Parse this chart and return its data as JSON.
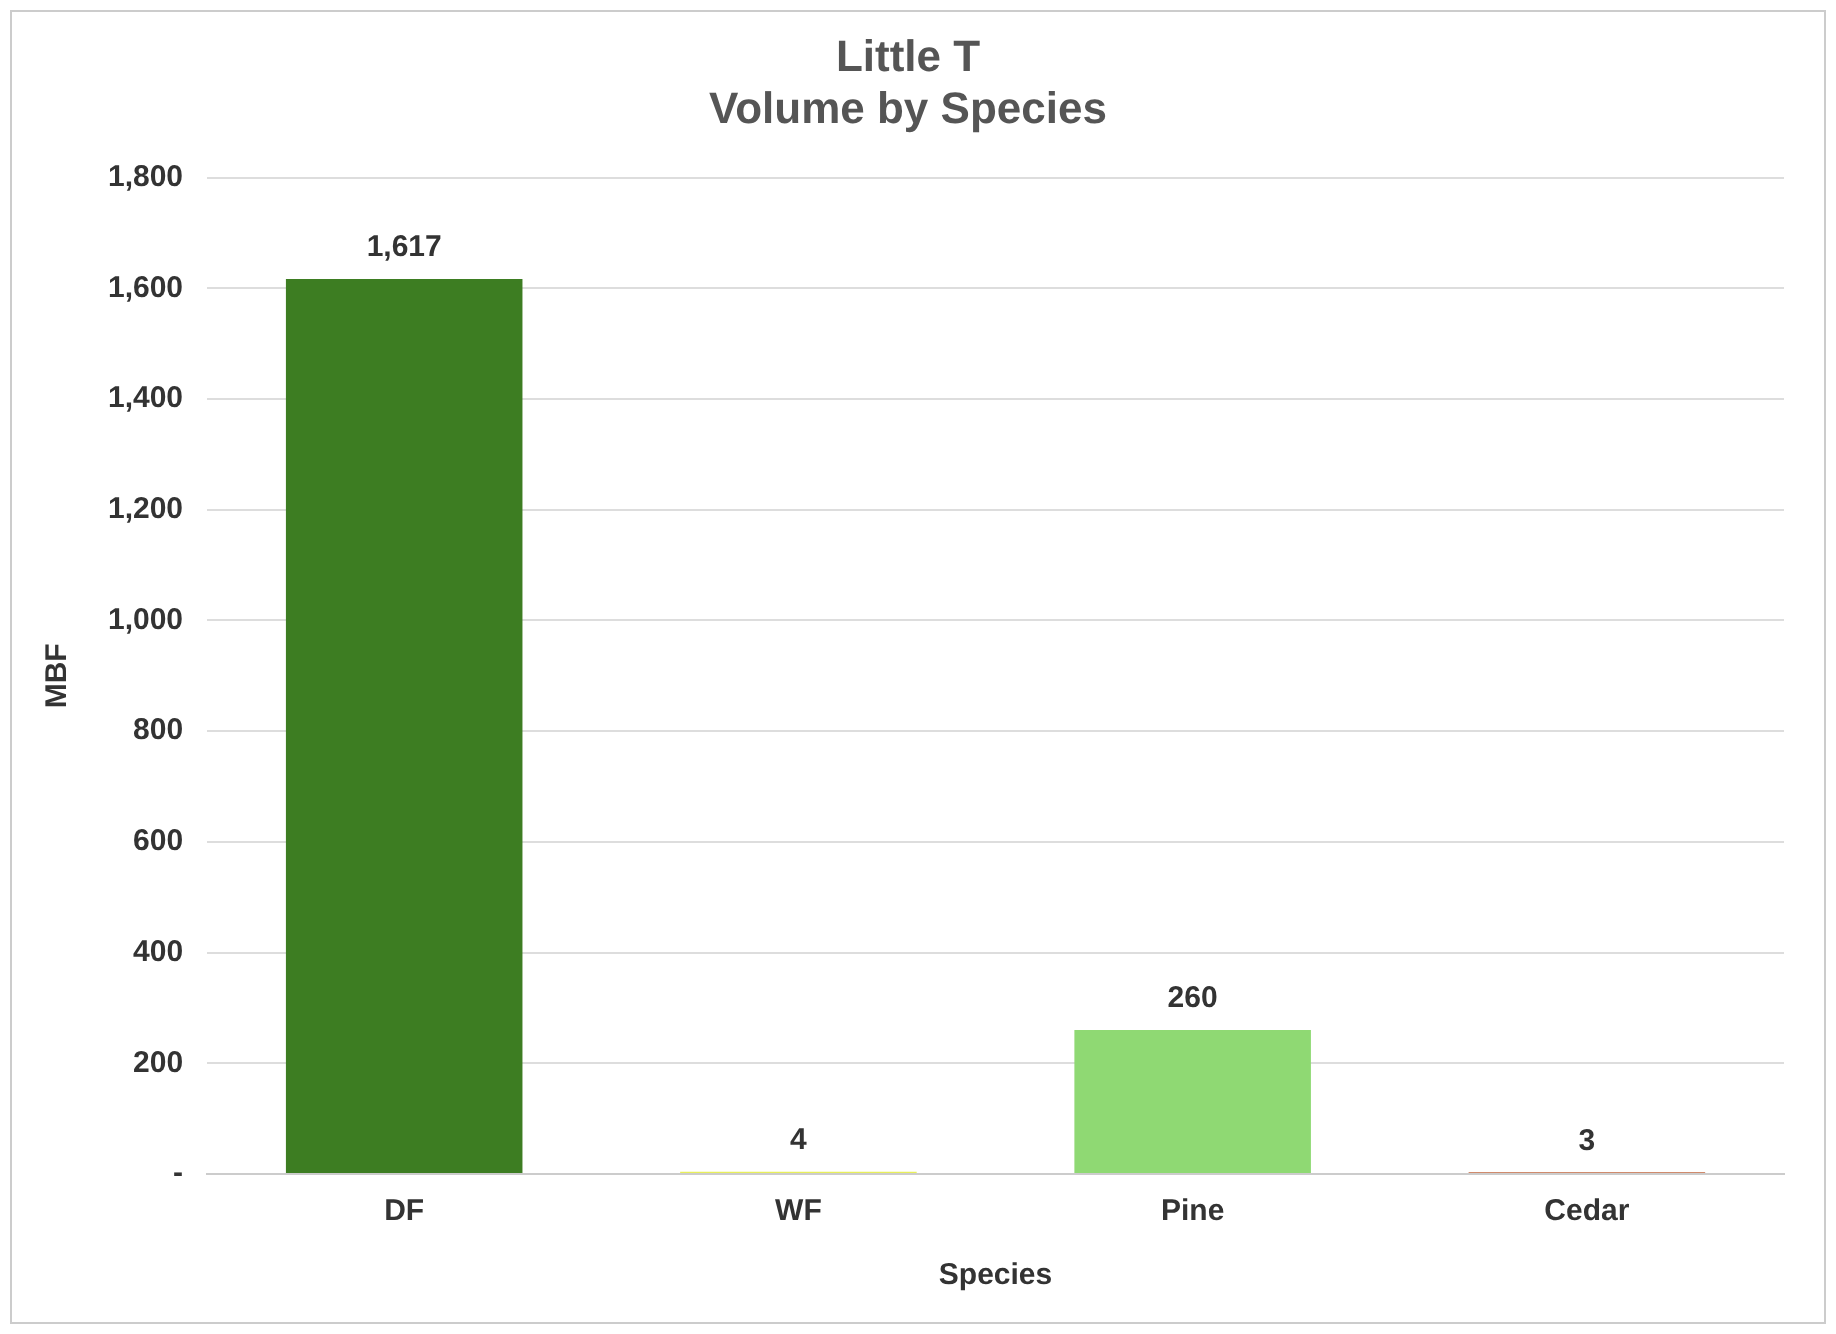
{
  "chart_data": {
    "type": "bar",
    "title": [
      "Little T",
      "Volume by Species"
    ],
    "xlabel": "Species",
    "ylabel": "MBF",
    "categories": [
      "DF",
      "WF",
      "Pine",
      "Cedar"
    ],
    "values": [
      1617,
      4,
      260,
      3
    ],
    "colors": [
      "#3d7d22",
      "#e8ef5a",
      "#8fd973",
      "#c0643c"
    ],
    "value_labels": [
      "1,617",
      "4",
      "260",
      "3"
    ],
    "ylim": [
      0,
      1800
    ],
    "yticks": [
      {
        "value": 0,
        "label": "-"
      },
      {
        "value": 200,
        "label": "200"
      },
      {
        "value": 400,
        "label": "400"
      },
      {
        "value": 600,
        "label": "600"
      },
      {
        "value": 800,
        "label": "800"
      },
      {
        "value": 1000,
        "label": "1,000"
      },
      {
        "value": 1200,
        "label": "1,200"
      },
      {
        "value": 1400,
        "label": "1,400"
      },
      {
        "value": 1600,
        "label": "1,600"
      },
      {
        "value": 1800,
        "label": "1,800"
      }
    ],
    "grid": "y",
    "legend": false
  }
}
